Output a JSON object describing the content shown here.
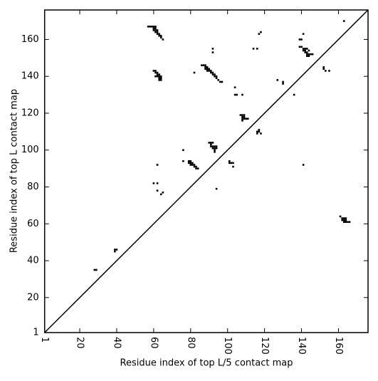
{
  "chart_data": {
    "type": "scatter",
    "xlabel": "Residue index of top L/5 contact map",
    "ylabel": "Residue index of top L contact map",
    "xlim": [
      1,
      176
    ],
    "ylim": [
      1,
      176
    ],
    "xticks": [
      1,
      20,
      40,
      60,
      80,
      100,
      120,
      140,
      160
    ],
    "yticks": [
      1,
      20,
      40,
      60,
      80,
      100,
      120,
      140,
      160
    ],
    "diagonal": true,
    "series": [
      {
        "color": "#000000",
        "x": [
          57,
          58,
          59,
          60,
          61,
          60,
          61,
          60,
          61,
          62,
          62,
          63,
          63,
          64,
          64,
          65,
          62,
          61,
          60,
          61,
          61,
          62,
          61,
          62,
          62,
          63,
          63,
          63,
          64,
          64,
          63,
          64,
          82,
          86,
          87,
          88,
          88,
          89,
          89,
          90,
          90,
          91,
          91,
          92,
          92,
          93,
          93,
          94,
          94,
          95,
          96,
          97,
          88,
          89,
          92,
          92,
          104,
          104,
          105,
          108,
          114,
          116,
          117,
          118,
          139,
          140,
          141,
          139,
          140,
          141,
          141,
          142,
          142,
          143,
          143,
          144,
          145,
          143,
          142,
          144,
          143,
          144,
          146,
          152,
          152,
          153,
          155,
          163,
          127,
          130,
          130,
          136,
          107,
          108,
          109,
          108,
          109,
          108,
          109,
          110,
          111,
          108,
          116,
          117,
          117,
          118,
          116,
          90,
          91,
          92,
          91,
          91,
          92,
          93,
          94,
          92,
          93,
          93,
          93,
          94,
          76,
          76,
          79,
          80,
          79,
          80,
          81,
          80,
          81,
          82,
          82,
          83,
          83,
          84,
          62,
          101,
          101,
          102,
          103,
          103,
          60,
          62,
          62,
          64,
          65,
          94,
          141,
          161,
          162,
          163,
          164,
          163,
          164,
          164,
          165,
          166,
          163,
          162,
          39,
          40,
          39,
          28,
          29
        ],
        "y": [
          167,
          167,
          167,
          167,
          167,
          166,
          166,
          165,
          165,
          165,
          164,
          163,
          162,
          162,
          161,
          160,
          163,
          164,
          143,
          143,
          142,
          142,
          140,
          140,
          141,
          141,
          140,
          139,
          139,
          140,
          138,
          138,
          142,
          146,
          146,
          146,
          145,
          145,
          144,
          144,
          143,
          143,
          142,
          142,
          141,
          141,
          140,
          140,
          139,
          138,
          137,
          137,
          144,
          143,
          155,
          153,
          134,
          130,
          130,
          130,
          155,
          155,
          163,
          164,
          160,
          160,
          163,
          156,
          156,
          155,
          154,
          154,
          153,
          153,
          152,
          152,
          152,
          155,
          155,
          154,
          151,
          151,
          152,
          145,
          144,
          143,
          143,
          170,
          138,
          137,
          136,
          130,
          119,
          119,
          119,
          118,
          118,
          117,
          117,
          117,
          117,
          116,
          110,
          110,
          111,
          109,
          109,
          104,
          104,
          104,
          103,
          102,
          102,
          102,
          102,
          101,
          101,
          100,
          99,
          101,
          100,
          94,
          94,
          94,
          93,
          93,
          93,
          92,
          92,
          92,
          91,
          91,
          90,
          90,
          92,
          94,
          93,
          93,
          93,
          91,
          82,
          82,
          78,
          76,
          77,
          79,
          92,
          64,
          63,
          63,
          63,
          62,
          62,
          61,
          61,
          61,
          61,
          62,
          46,
          46,
          45,
          35,
          35
        ]
      }
    ]
  }
}
